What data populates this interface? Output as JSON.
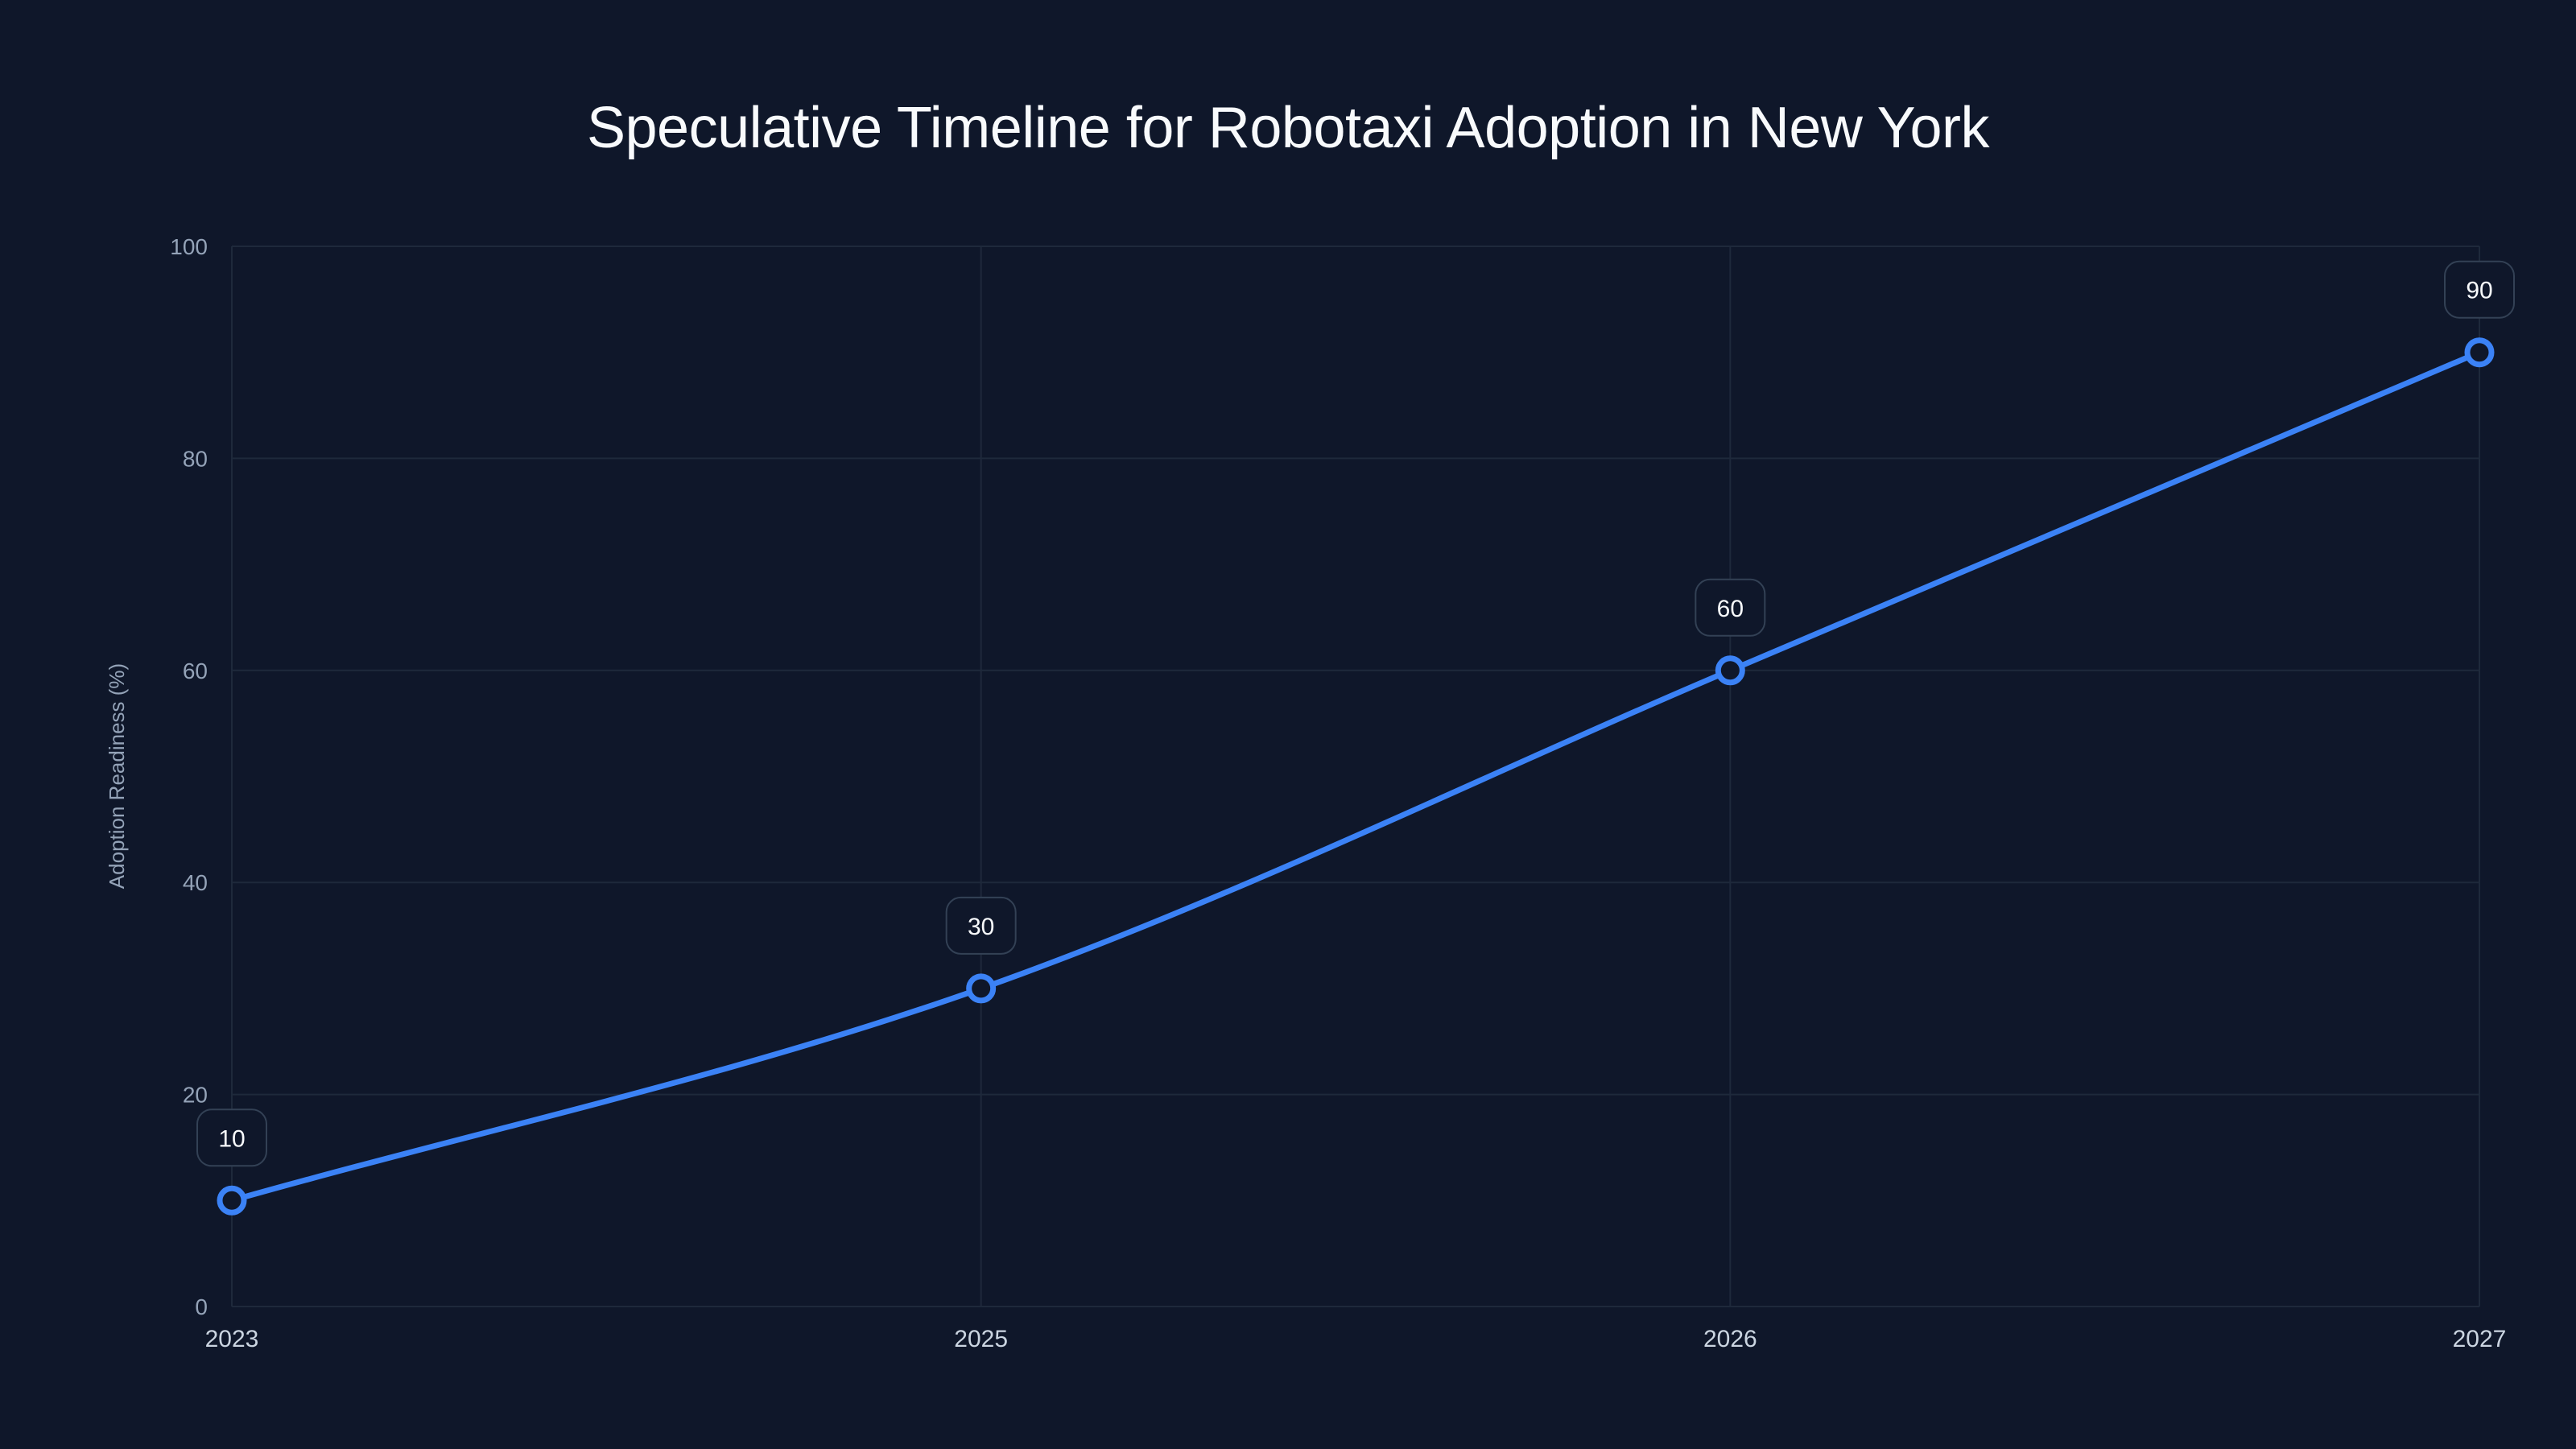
{
  "chart_data": {
    "type": "line",
    "title": "Speculative Timeline for Robotaxi Adoption in New York",
    "xlabel": "",
    "ylabel": "Adoption Readiness (%)",
    "categories": [
      "2023",
      "2025",
      "2026",
      "2027"
    ],
    "series": [
      {
        "name": "Adoption Readiness",
        "values": [
          10,
          30,
          60,
          90
        ],
        "color": "#3b82f6"
      }
    ],
    "data_labels": [
      "10",
      "30",
      "60",
      "90"
    ],
    "ylim": [
      0,
      100
    ],
    "yticks": [
      "0",
      "20",
      "40",
      "60",
      "80",
      "100"
    ],
    "grid": true,
    "legend": "none"
  },
  "colors": {
    "background": "#0f172a",
    "line": "#3b82f6",
    "grid": "#1e293b",
    "tick_text": "#94a3b8",
    "title_text": "#f8fafc"
  }
}
